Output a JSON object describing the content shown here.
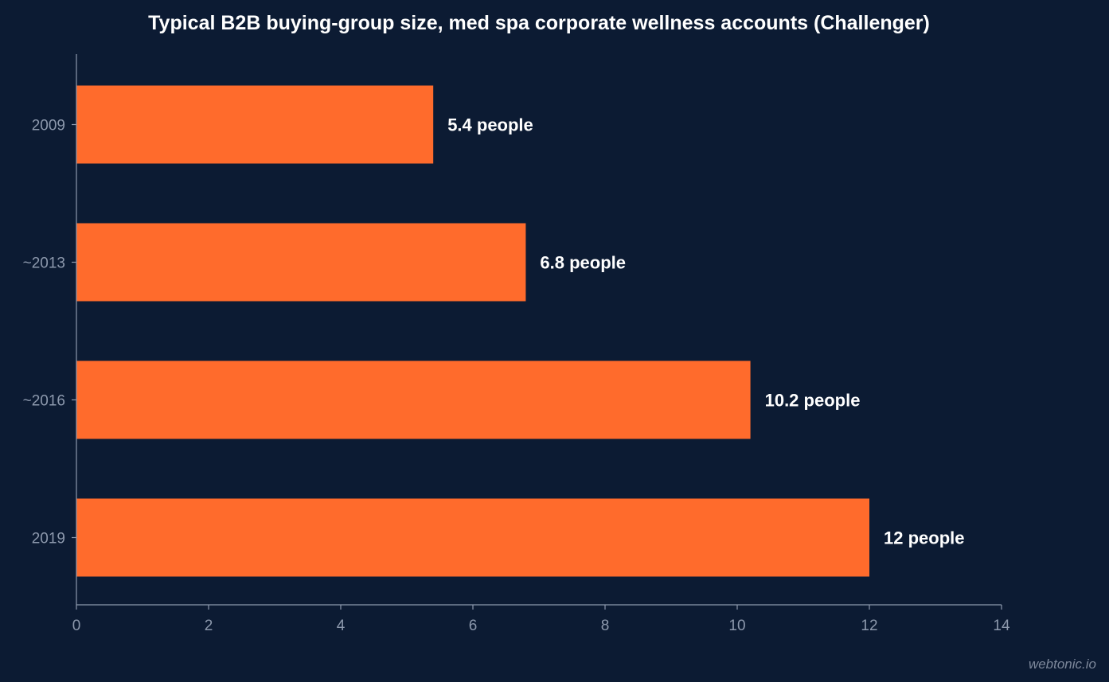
{
  "colors": {
    "background": "#0c1b33",
    "bar": "#ff6b2c",
    "axis": "#8d99ad",
    "title": "#ffffff",
    "data_label": "#ffffff"
  },
  "watermark": "webtonic.io",
  "chart_data": {
    "type": "bar",
    "orientation": "horizontal",
    "title": "Typical B2B buying-group size, med spa corporate wellness accounts (Challenger)",
    "xlabel": "",
    "ylabel": "",
    "categories": [
      "2009",
      "~2013",
      "~2016",
      "2019"
    ],
    "values": [
      5.4,
      6.8,
      10.2,
      12
    ],
    "data_labels": [
      "5.4 people",
      "6.8 people",
      "10.2 people",
      "12 people"
    ],
    "xlim": [
      0,
      14
    ],
    "x_ticks": [
      "0",
      "2",
      "4",
      "6",
      "8",
      "10",
      "12",
      "14"
    ],
    "grid": false,
    "legend": "none"
  }
}
